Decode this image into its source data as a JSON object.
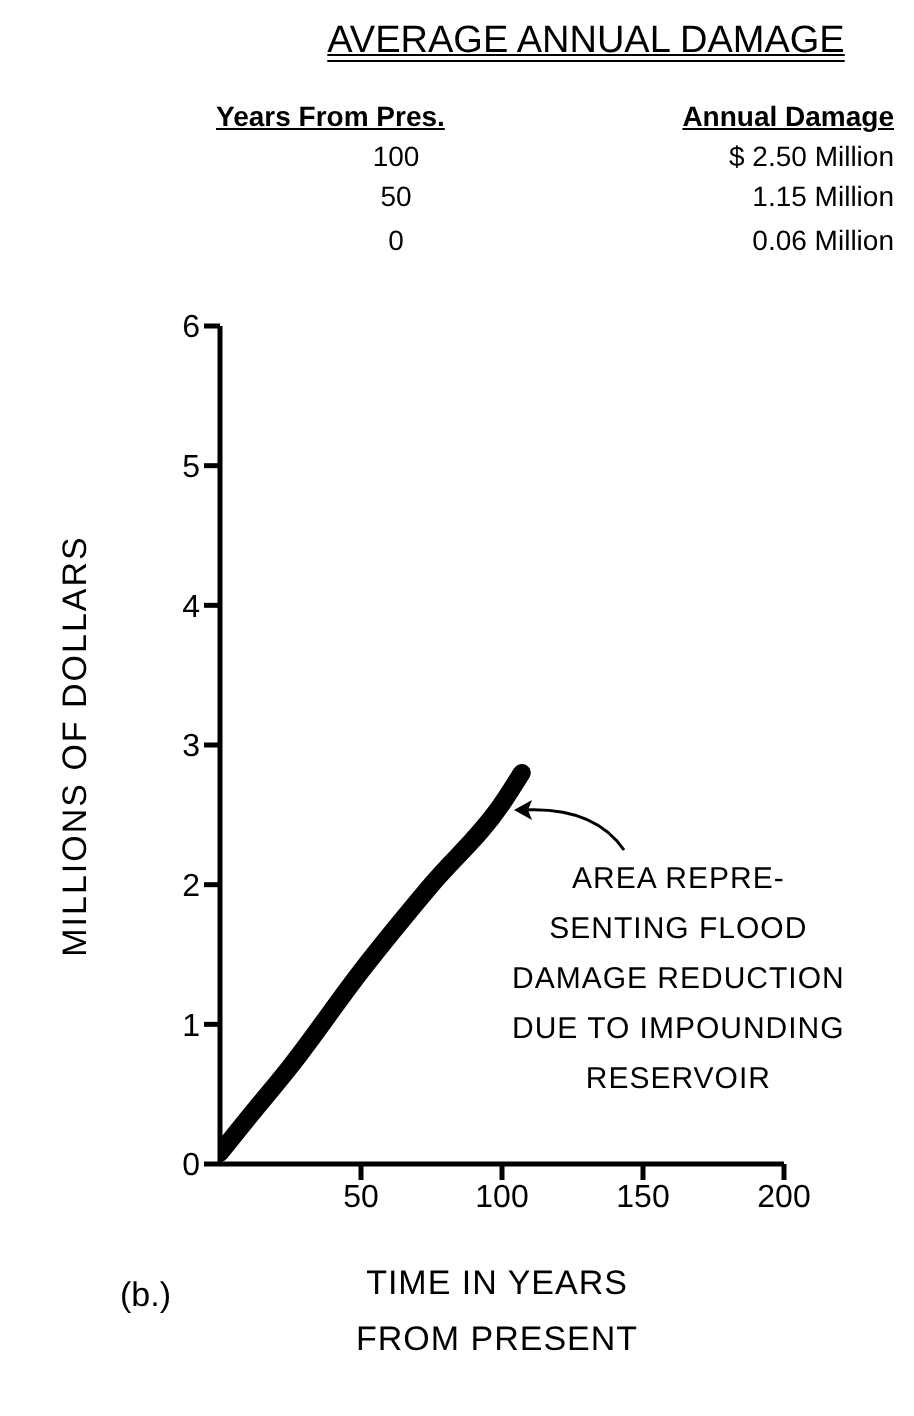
{
  "chart_data": {
    "type": "line",
    "title": "AVERAGE ANNUAL DAMAGE",
    "xlabel": "TIME IN YEARS\nFROM PRESENT",
    "ylabel": "MILLIONS OF DOLLARS",
    "x": [
      0,
      10,
      25,
      50,
      75,
      100,
      107
    ],
    "series": [
      {
        "type": "line",
        "color": "#000000",
        "values": [
          0.08,
          0.33,
          0.7,
          1.38,
          2.0,
          2.58,
          2.8
        ]
      }
    ],
    "xlim": [
      0,
      200
    ],
    "xticks": [
      50,
      100,
      150,
      200
    ],
    "ylim": [
      0,
      6
    ],
    "yticks": [
      0,
      1,
      2,
      3,
      4,
      5,
      6
    ],
    "grid": false,
    "legend": false,
    "marker": "none",
    "line_style": "solid",
    "annotations": [
      "Years From Pres.",
      "Annual Damage",
      "100",
      "$ 2.50 Million",
      "50",
      "1.15 Million",
      "0",
      "0.06 Million",
      {
        "text": "AREA REPRE-\nSENTING FLOOD\nDAMAGE REDUCTION\nDUE TO IMPOUNDING\nRESERVOIR",
        "x": 100,
        "y": 2.5
      },
      "(b.)"
    ]
  }
}
